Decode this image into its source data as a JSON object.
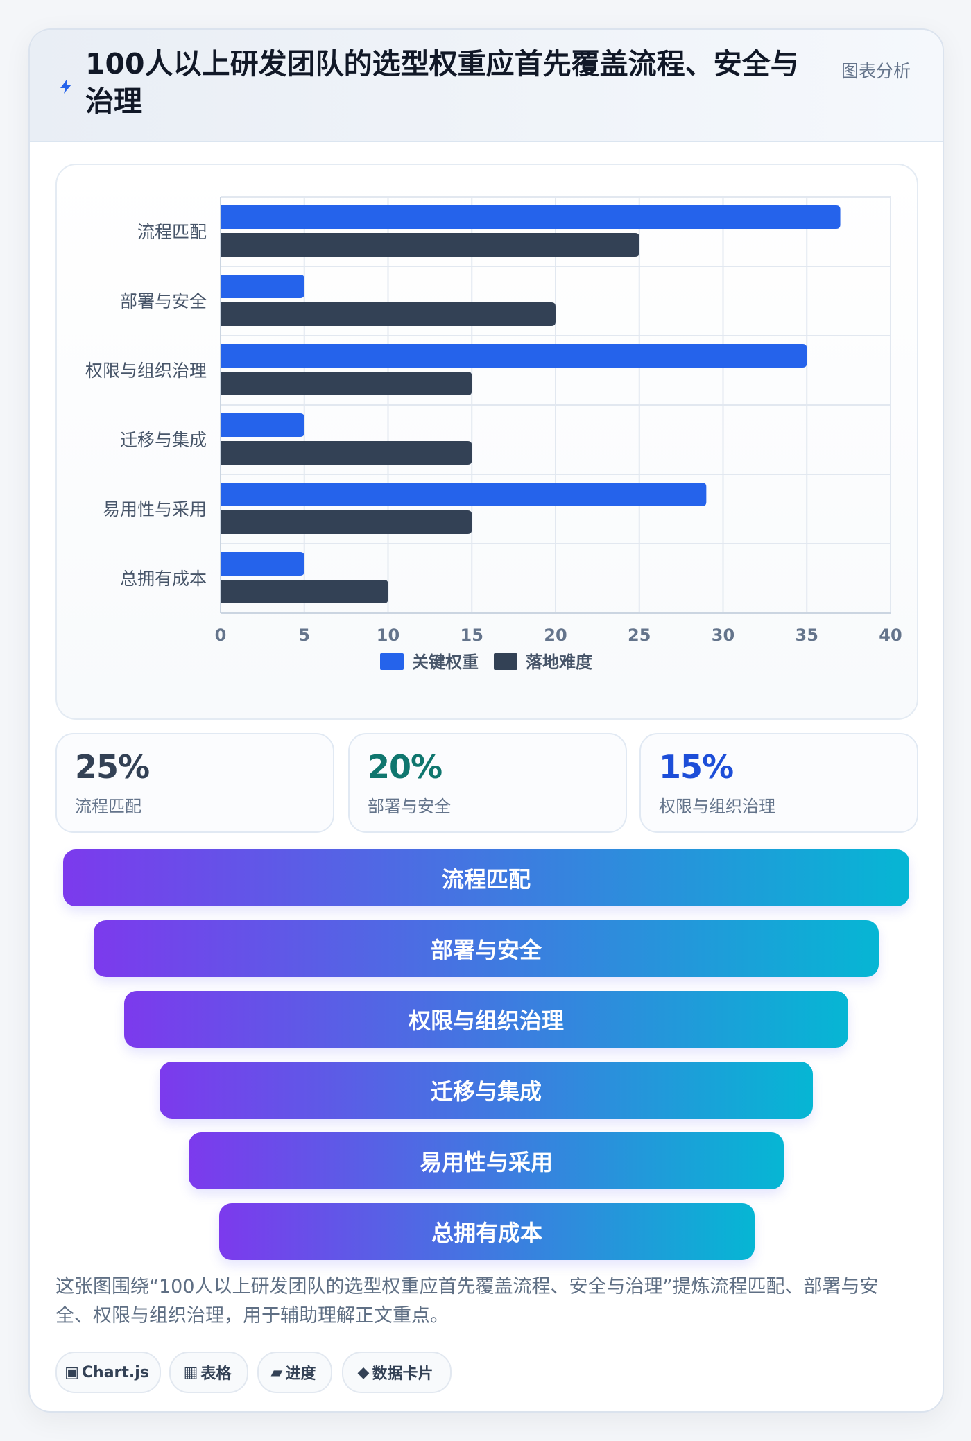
{
  "header": {
    "title": "100人以上研发团队的选型权重应首先覆盖流程、安全与治理",
    "tag": "图表分析"
  },
  "chart_data": {
    "type": "bar",
    "orientation": "horizontal",
    "categories": [
      "流程匹配",
      "部署与安全",
      "权限与组织治理",
      "迁移与集成",
      "易用性与采用",
      "总拥有成本"
    ],
    "series": [
      {
        "name": "关键权重",
        "values": [
          37,
          5,
          35,
          5,
          29,
          5
        ],
        "color": "#2563eb"
      },
      {
        "name": "落地难度",
        "values": [
          25,
          20,
          15,
          15,
          15,
          10
        ],
        "color": "#334155"
      }
    ],
    "xlim": [
      0,
      40
    ],
    "xticks": [
      0,
      5,
      10,
      15,
      20,
      25,
      30,
      35,
      40
    ],
    "grid": true,
    "legend": "bottom"
  },
  "stats": [
    {
      "value": "25%",
      "label": "流程匹配",
      "color": "#334155"
    },
    {
      "value": "20%",
      "label": "部署与安全",
      "color": "#0f766e"
    },
    {
      "value": "15%",
      "label": "权限与组织治理",
      "color": "#1d4ed8"
    }
  ],
  "funnel": {
    "items": [
      "流程匹配",
      "部署与安全",
      "权限与组织治理",
      "迁移与集成",
      "易用性与采用",
      "总拥有成本"
    ]
  },
  "summary": "这张图围绕“100人以上研发团队的选型权重应首先覆盖流程、安全与治理”提炼流程匹配、部署与安全、权限与组织治理，用于辅助理解正文重点。",
  "chips": [
    {
      "icon": "▣",
      "label": "Chart.js",
      "icon_name": "chart-icon"
    },
    {
      "icon": "▦",
      "label": "表格",
      "icon_name": "table-icon"
    },
    {
      "icon": "▰",
      "label": "进度",
      "icon_name": "progress-icon"
    },
    {
      "icon": "◆",
      "label": "数据卡片",
      "icon_name": "diamond-icon"
    }
  ]
}
